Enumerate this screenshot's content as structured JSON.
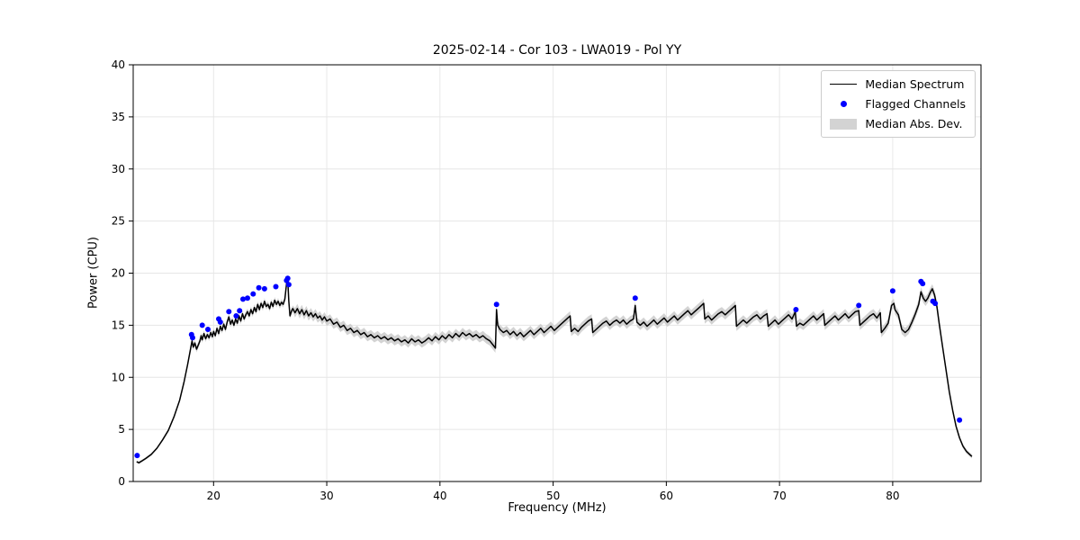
{
  "figure": {
    "title": "2025-02-14 - Cor 103 - LWA019 - Pol YY",
    "xlabel": "Frequency (MHz)",
    "ylabel": "Power (CPU)"
  },
  "legend": {
    "items": [
      {
        "label": "Median Spectrum",
        "type": "line"
      },
      {
        "label": "Flagged Channels",
        "type": "dot"
      },
      {
        "label": "Median Abs. Dev.",
        "type": "patch"
      }
    ]
  },
  "chart_data": {
    "type": "line",
    "title": "2025-02-14 - Cor 103 - LWA019 - Pol YY",
    "xlabel": "Frequency (MHz)",
    "ylabel": "Power (CPU)",
    "xlim": [
      12.9,
      87.8
    ],
    "ylim": [
      0,
      40
    ],
    "xticks": [
      20,
      30,
      40,
      50,
      60,
      70,
      80
    ],
    "yticks": [
      0,
      5,
      10,
      15,
      20,
      25,
      30,
      35,
      40
    ],
    "grid": true,
    "legend_position": "upper right",
    "colors": {
      "line": "#000000",
      "flagged": "#0000ff",
      "band": "#c8c8c8",
      "grid": "#e6e6e6",
      "spine": "#000000"
    },
    "mad_segments": [
      {
        "range": [
          12.9,
          17.8
        ],
        "mad": 0.12
      },
      {
        "range": [
          17.8,
          27.0
        ],
        "mad": 0.3
      },
      {
        "range": [
          27.0,
          84.2
        ],
        "mad": 0.45
      },
      {
        "range": [
          84.2,
          87.8
        ],
        "mad": 0.2
      }
    ],
    "median_spectrum": [
      [
        13.2,
        1.9
      ],
      [
        13.4,
        1.8
      ],
      [
        13.7,
        2.0
      ],
      [
        14.0,
        2.2
      ],
      [
        14.5,
        2.6
      ],
      [
        15.0,
        3.2
      ],
      [
        15.5,
        4.0
      ],
      [
        16.0,
        4.9
      ],
      [
        16.5,
        6.2
      ],
      [
        17.0,
        7.8
      ],
      [
        17.4,
        9.6
      ],
      [
        17.7,
        11.2
      ],
      [
        18.0,
        12.9
      ],
      [
        18.1,
        13.5
      ],
      [
        18.2,
        12.9
      ],
      [
        18.35,
        13.3
      ],
      [
        18.5,
        12.7
      ],
      [
        18.65,
        13.1
      ],
      [
        18.8,
        13.5
      ],
      [
        18.9,
        14.0
      ],
      [
        19.0,
        13.6
      ],
      [
        19.15,
        14.2
      ],
      [
        19.3,
        13.7
      ],
      [
        19.45,
        14.1
      ],
      [
        19.6,
        13.8
      ],
      [
        19.75,
        14.3
      ],
      [
        19.9,
        13.9
      ],
      [
        20.0,
        14.4
      ],
      [
        20.15,
        14.0
      ],
      [
        20.3,
        14.7
      ],
      [
        20.45,
        14.2
      ],
      [
        20.6,
        14.9
      ],
      [
        20.75,
        14.5
      ],
      [
        20.9,
        15.1
      ],
      [
        21.05,
        14.6
      ],
      [
        21.2,
        15.3
      ],
      [
        21.35,
        15.8
      ],
      [
        21.5,
        15.1
      ],
      [
        21.65,
        15.5
      ],
      [
        21.8,
        15.0
      ],
      [
        21.95,
        15.6
      ],
      [
        22.1,
        15.2
      ],
      [
        22.25,
        15.9
      ],
      [
        22.4,
        15.4
      ],
      [
        22.55,
        16.1
      ],
      [
        22.7,
        15.6
      ],
      [
        22.85,
        16.0
      ],
      [
        23.0,
        16.3
      ],
      [
        23.15,
        15.9
      ],
      [
        23.3,
        16.5
      ],
      [
        23.45,
        16.1
      ],
      [
        23.6,
        16.7
      ],
      [
        23.75,
        16.3
      ],
      [
        23.9,
        17.0
      ],
      [
        24.05,
        16.5
      ],
      [
        24.2,
        17.1
      ],
      [
        24.35,
        16.7
      ],
      [
        24.5,
        17.3
      ],
      [
        24.65,
        16.8
      ],
      [
        24.8,
        17.0
      ],
      [
        24.95,
        16.6
      ],
      [
        25.1,
        17.2
      ],
      [
        25.25,
        16.8
      ],
      [
        25.4,
        17.4
      ],
      [
        25.55,
        17.0
      ],
      [
        25.7,
        17.3
      ],
      [
        25.85,
        16.9
      ],
      [
        26.0,
        17.2
      ],
      [
        26.15,
        17.0
      ],
      [
        26.3,
        17.5
      ],
      [
        26.45,
        19.0
      ],
      [
        26.55,
        19.4
      ],
      [
        26.65,
        17.3
      ],
      [
        26.75,
        15.9
      ],
      [
        26.9,
        16.4
      ],
      [
        27.0,
        16.6
      ],
      [
        27.2,
        16.2
      ],
      [
        27.4,
        16.6
      ],
      [
        27.6,
        16.1
      ],
      [
        27.8,
        16.5
      ],
      [
        28.0,
        16.0
      ],
      [
        28.2,
        16.4
      ],
      [
        28.4,
        15.9
      ],
      [
        28.6,
        16.2
      ],
      [
        28.8,
        15.8
      ],
      [
        29.0,
        16.1
      ],
      [
        29.2,
        15.7
      ],
      [
        29.4,
        15.9
      ],
      [
        29.6,
        15.5
      ],
      [
        29.8,
        15.8
      ],
      [
        30.0,
        15.4
      ],
      [
        30.3,
        15.6
      ],
      [
        30.6,
        15.1
      ],
      [
        30.9,
        15.3
      ],
      [
        31.2,
        14.8
      ],
      [
        31.5,
        15.0
      ],
      [
        31.8,
        14.5
      ],
      [
        32.1,
        14.7
      ],
      [
        32.4,
        14.3
      ],
      [
        32.7,
        14.5
      ],
      [
        33.0,
        14.1
      ],
      [
        33.3,
        14.3
      ],
      [
        33.6,
        13.9
      ],
      [
        33.9,
        14.1
      ],
      [
        34.2,
        13.8
      ],
      [
        34.5,
        14.0
      ],
      [
        34.8,
        13.7
      ],
      [
        35.1,
        13.9
      ],
      [
        35.4,
        13.6
      ],
      [
        35.7,
        13.8
      ],
      [
        36.0,
        13.5
      ],
      [
        36.3,
        13.7
      ],
      [
        36.6,
        13.4
      ],
      [
        36.9,
        13.6
      ],
      [
        37.2,
        13.3
      ],
      [
        37.5,
        13.7
      ],
      [
        37.8,
        13.4
      ],
      [
        38.1,
        13.6
      ],
      [
        38.4,
        13.3
      ],
      [
        38.7,
        13.5
      ],
      [
        39.0,
        13.8
      ],
      [
        39.3,
        13.5
      ],
      [
        39.6,
        13.9
      ],
      [
        39.9,
        13.6
      ],
      [
        40.2,
        14.0
      ],
      [
        40.5,
        13.7
      ],
      [
        40.8,
        14.1
      ],
      [
        41.1,
        13.8
      ],
      [
        41.4,
        14.2
      ],
      [
        41.7,
        13.9
      ],
      [
        42.0,
        14.3
      ],
      [
        42.3,
        14.0
      ],
      [
        42.6,
        14.2
      ],
      [
        42.9,
        13.9
      ],
      [
        43.2,
        14.1
      ],
      [
        43.5,
        13.8
      ],
      [
        43.8,
        14.0
      ],
      [
        44.1,
        13.7
      ],
      [
        44.4,
        13.5
      ],
      [
        44.7,
        13.1
      ],
      [
        44.9,
        12.8
      ],
      [
        45.0,
        16.5
      ],
      [
        45.1,
        15.0
      ],
      [
        45.3,
        14.6
      ],
      [
        45.6,
        14.3
      ],
      [
        45.9,
        14.5
      ],
      [
        46.2,
        14.1
      ],
      [
        46.5,
        14.4
      ],
      [
        46.8,
        14.0
      ],
      [
        47.1,
        14.3
      ],
      [
        47.4,
        13.9
      ],
      [
        47.7,
        14.2
      ],
      [
        48.0,
        14.5
      ],
      [
        48.3,
        14.1
      ],
      [
        48.6,
        14.4
      ],
      [
        48.9,
        14.7
      ],
      [
        49.2,
        14.3
      ],
      [
        49.5,
        14.6
      ],
      [
        49.8,
        14.9
      ],
      [
        50.1,
        14.5
      ],
      [
        50.4,
        14.8
      ],
      [
        50.7,
        15.1
      ],
      [
        51.0,
        15.4
      ],
      [
        51.3,
        15.7
      ],
      [
        51.5,
        15.9
      ],
      [
        51.6,
        14.4
      ],
      [
        51.9,
        14.7
      ],
      [
        52.2,
        14.4
      ],
      [
        52.5,
        14.8
      ],
      [
        52.8,
        15.1
      ],
      [
        53.1,
        15.4
      ],
      [
        53.4,
        15.6
      ],
      [
        53.5,
        14.3
      ],
      [
        53.8,
        14.6
      ],
      [
        54.1,
        14.9
      ],
      [
        54.4,
        15.2
      ],
      [
        54.7,
        15.4
      ],
      [
        55.0,
        15.0
      ],
      [
        55.3,
        15.3
      ],
      [
        55.6,
        15.5
      ],
      [
        55.9,
        15.2
      ],
      [
        56.2,
        15.5
      ],
      [
        56.5,
        15.1
      ],
      [
        56.8,
        15.4
      ],
      [
        57.1,
        15.6
      ],
      [
        57.25,
        16.9
      ],
      [
        57.4,
        15.3
      ],
      [
        57.7,
        15.0
      ],
      [
        58.0,
        15.3
      ],
      [
        58.3,
        14.9
      ],
      [
        58.6,
        15.2
      ],
      [
        58.9,
        15.5
      ],
      [
        59.2,
        15.1
      ],
      [
        59.5,
        15.4
      ],
      [
        59.8,
        15.7
      ],
      [
        60.1,
        15.3
      ],
      [
        60.4,
        15.6
      ],
      [
        60.7,
        15.9
      ],
      [
        61.0,
        15.5
      ],
      [
        61.3,
        15.8
      ],
      [
        61.6,
        16.1
      ],
      [
        61.9,
        16.4
      ],
      [
        62.2,
        16.0
      ],
      [
        62.5,
        16.3
      ],
      [
        62.8,
        16.6
      ],
      [
        63.1,
        16.9
      ],
      [
        63.3,
        17.1
      ],
      [
        63.4,
        15.6
      ],
      [
        63.7,
        15.9
      ],
      [
        64.0,
        15.5
      ],
      [
        64.3,
        15.8
      ],
      [
        64.6,
        16.1
      ],
      [
        64.9,
        16.3
      ],
      [
        65.2,
        16.0
      ],
      [
        65.5,
        16.3
      ],
      [
        65.8,
        16.6
      ],
      [
        66.1,
        16.9
      ],
      [
        66.2,
        14.9
      ],
      [
        66.5,
        15.2
      ],
      [
        66.8,
        15.5
      ],
      [
        67.1,
        15.2
      ],
      [
        67.4,
        15.5
      ],
      [
        67.7,
        15.8
      ],
      [
        68.0,
        16.0
      ],
      [
        68.3,
        15.6
      ],
      [
        68.6,
        15.9
      ],
      [
        68.9,
        16.1
      ],
      [
        69.0,
        14.9
      ],
      [
        69.3,
        15.2
      ],
      [
        69.6,
        15.5
      ],
      [
        69.9,
        15.1
      ],
      [
        70.2,
        15.4
      ],
      [
        70.5,
        15.7
      ],
      [
        70.8,
        16.0
      ],
      [
        71.1,
        15.6
      ],
      [
        71.4,
        16.3
      ],
      [
        71.5,
        14.9
      ],
      [
        71.8,
        15.2
      ],
      [
        72.1,
        15.0
      ],
      [
        72.4,
        15.3
      ],
      [
        72.7,
        15.6
      ],
      [
        73.0,
        15.9
      ],
      [
        73.3,
        15.5
      ],
      [
        73.6,
        15.8
      ],
      [
        73.9,
        16.1
      ],
      [
        74.0,
        15.0
      ],
      [
        74.3,
        15.3
      ],
      [
        74.6,
        15.6
      ],
      [
        74.9,
        15.9
      ],
      [
        75.2,
        15.5
      ],
      [
        75.5,
        15.8
      ],
      [
        75.8,
        16.1
      ],
      [
        76.1,
        15.7
      ],
      [
        76.4,
        16.0
      ],
      [
        76.7,
        16.3
      ],
      [
        77.0,
        16.4
      ],
      [
        77.1,
        15.0
      ],
      [
        77.4,
        15.3
      ],
      [
        77.7,
        15.6
      ],
      [
        78.0,
        15.9
      ],
      [
        78.3,
        16.1
      ],
      [
        78.6,
        15.7
      ],
      [
        78.9,
        16.2
      ],
      [
        79.0,
        14.3
      ],
      [
        79.3,
        14.7
      ],
      [
        79.6,
        15.2
      ],
      [
        79.9,
        16.9
      ],
      [
        80.1,
        17.1
      ],
      [
        80.2,
        16.5
      ],
      [
        80.5,
        16.0
      ],
      [
        80.8,
        14.6
      ],
      [
        81.1,
        14.3
      ],
      [
        81.4,
        14.6
      ],
      [
        81.7,
        15.3
      ],
      [
        82.0,
        16.1
      ],
      [
        82.3,
        17.0
      ],
      [
        82.5,
        18.2
      ],
      [
        82.7,
        17.6
      ],
      [
        82.9,
        17.3
      ],
      [
        83.1,
        17.6
      ],
      [
        83.3,
        18.1
      ],
      [
        83.5,
        18.5
      ],
      [
        83.7,
        17.9
      ],
      [
        83.9,
        16.8
      ],
      [
        84.1,
        15.2
      ],
      [
        84.4,
        13.0
      ],
      [
        84.7,
        10.8
      ],
      [
        85.0,
        8.6
      ],
      [
        85.3,
        6.8
      ],
      [
        85.6,
        5.3
      ],
      [
        85.9,
        4.2
      ],
      [
        86.2,
        3.4
      ],
      [
        86.5,
        2.9
      ],
      [
        86.8,
        2.6
      ],
      [
        87.0,
        2.4
      ]
    ],
    "flagged_channels": [
      [
        13.25,
        2.5
      ],
      [
        18.05,
        14.1
      ],
      [
        18.15,
        13.8
      ],
      [
        19.0,
        15.0
      ],
      [
        19.5,
        14.6
      ],
      [
        20.45,
        15.6
      ],
      [
        20.6,
        15.3
      ],
      [
        21.35,
        16.3
      ],
      [
        22.0,
        15.9
      ],
      [
        22.3,
        16.4
      ],
      [
        22.6,
        17.5
      ],
      [
        23.0,
        17.6
      ],
      [
        23.5,
        18.0
      ],
      [
        24.0,
        18.6
      ],
      [
        24.5,
        18.5
      ],
      [
        25.5,
        18.7
      ],
      [
        26.45,
        19.3
      ],
      [
        26.55,
        19.5
      ],
      [
        26.65,
        18.9
      ],
      [
        45.0,
        17.0
      ],
      [
        57.25,
        17.6
      ],
      [
        71.45,
        16.5
      ],
      [
        77.0,
        16.9
      ],
      [
        80.0,
        18.3
      ],
      [
        82.5,
        19.2
      ],
      [
        82.65,
        19.0
      ],
      [
        83.55,
        17.3
      ],
      [
        83.75,
        17.1
      ],
      [
        85.9,
        5.9
      ]
    ]
  }
}
